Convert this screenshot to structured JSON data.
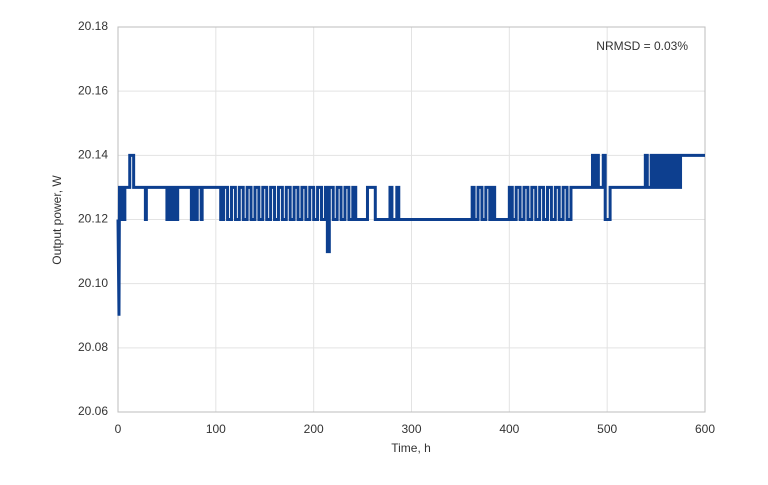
{
  "chart_data": {
    "type": "line",
    "x_label": "Time, h",
    "y_label": "Output power, W",
    "annotation": "NRMSD = 0.03%",
    "color": "#0d3f8f",
    "grid": true,
    "xlim": [
      0,
      600
    ],
    "xticks": [
      0,
      100,
      200,
      300,
      400,
      500,
      600
    ],
    "ylim": [
      20.06,
      20.18
    ],
    "yticks": [
      20.06,
      20.08,
      {
        "value": 20.1,
        "label": "20.10"
      },
      20.12,
      20.14,
      20.16,
      20.18
    ],
    "x": [
      0,
      1,
      1.5,
      3,
      3,
      5,
      5,
      6,
      6,
      7,
      7,
      12,
      12,
      16,
      16,
      28,
      28,
      29,
      29,
      50,
      50,
      52,
      52,
      55,
      55,
      57,
      57,
      60,
      60,
      61,
      61,
      75,
      75,
      77,
      77,
      80,
      80,
      81,
      81,
      85,
      85,
      86,
      86,
      105,
      105,
      108,
      108,
      112,
      112,
      116,
      116,
      120,
      120,
      124,
      124,
      128,
      128,
      132,
      132,
      136,
      136,
      140,
      140,
      144,
      144,
      148,
      148,
      152,
      152,
      156,
      156,
      160,
      160,
      164,
      164,
      168,
      168,
      172,
      172,
      176,
      176,
      180,
      180,
      184,
      184,
      188,
      188,
      192,
      192,
      196,
      196,
      200,
      200,
      204,
      204,
      208,
      208,
      212,
      212,
      214,
      214,
      216,
      216,
      220,
      220,
      224,
      224,
      228,
      228,
      232,
      232,
      236,
      236,
      240,
      240,
      243,
      243,
      255,
      255,
      263,
      263,
      278,
      278,
      280,
      280,
      285,
      285,
      287,
      287,
      362,
      362,
      364,
      364,
      368,
      368,
      372,
      372,
      376,
      376,
      380,
      380,
      383,
      383,
      385,
      385,
      400,
      400,
      403,
      403,
      407,
      407,
      411,
      411,
      415,
      415,
      419,
      419,
      423,
      423,
      427,
      427,
      431,
      431,
      435,
      435,
      439,
      439,
      443,
      443,
      447,
      447,
      451,
      451,
      455,
      455,
      459,
      459,
      463,
      463,
      485,
      485,
      487,
      487,
      489,
      489,
      491,
      491,
      496,
      496,
      498,
      498,
      503,
      503,
      539,
      539,
      541,
      541,
      545,
      545,
      548,
      548,
      551,
      551,
      554,
      554,
      557,
      557,
      560,
      560,
      563,
      563,
      566,
      566,
      569,
      569,
      572,
      572,
      575,
      575,
      600
    ],
    "values": [
      20.12,
      20.09,
      20.13,
      20.13,
      20.12,
      20.12,
      20.13,
      20.13,
      20.12,
      20.12,
      20.13,
      20.13,
      20.14,
      20.14,
      20.13,
      20.13,
      20.12,
      20.12,
      20.13,
      20.13,
      20.12,
      20.12,
      20.13,
      20.13,
      20.12,
      20.12,
      20.13,
      20.13,
      20.12,
      20.12,
      20.13,
      20.13,
      20.12,
      20.12,
      20.13,
      20.13,
      20.12,
      20.12,
      20.13,
      20.13,
      20.12,
      20.12,
      20.13,
      20.13,
      20.12,
      20.12,
      20.13,
      20.13,
      20.12,
      20.12,
      20.13,
      20.13,
      20.12,
      20.12,
      20.13,
      20.13,
      20.12,
      20.12,
      20.13,
      20.13,
      20.12,
      20.12,
      20.13,
      20.13,
      20.12,
      20.12,
      20.13,
      20.13,
      20.12,
      20.12,
      20.13,
      20.13,
      20.12,
      20.12,
      20.13,
      20.13,
      20.12,
      20.12,
      20.13,
      20.13,
      20.12,
      20.12,
      20.13,
      20.13,
      20.12,
      20.12,
      20.13,
      20.13,
      20.12,
      20.12,
      20.13,
      20.13,
      20.12,
      20.12,
      20.13,
      20.13,
      20.12,
      20.12,
      20.13,
      20.13,
      20.11,
      20.11,
      20.13,
      20.13,
      20.12,
      20.12,
      20.13,
      20.13,
      20.12,
      20.12,
      20.13,
      20.13,
      20.12,
      20.12,
      20.13,
      20.13,
      20.12,
      20.12,
      20.13,
      20.13,
      20.12,
      20.12,
      20.13,
      20.13,
      20.12,
      20.12,
      20.13,
      20.13,
      20.12,
      20.12,
      20.13,
      20.13,
      20.12,
      20.12,
      20.13,
      20.13,
      20.12,
      20.12,
      20.13,
      20.13,
      20.12,
      20.12,
      20.13,
      20.13,
      20.12,
      20.12,
      20.13,
      20.13,
      20.12,
      20.12,
      20.13,
      20.13,
      20.12,
      20.12,
      20.13,
      20.13,
      20.12,
      20.12,
      20.13,
      20.13,
      20.12,
      20.12,
      20.13,
      20.13,
      20.12,
      20.12,
      20.13,
      20.13,
      20.12,
      20.12,
      20.13,
      20.13,
      20.12,
      20.12,
      20.13,
      20.13,
      20.12,
      20.12,
      20.13,
      20.13,
      20.14,
      20.14,
      20.13,
      20.13,
      20.14,
      20.14,
      20.13,
      20.13,
      20.14,
      20.14,
      20.12,
      20.12,
      20.13,
      20.13,
      20.14,
      20.14,
      20.13,
      20.13,
      20.14,
      20.14,
      20.13,
      20.13,
      20.14,
      20.14,
      20.13,
      20.13,
      20.14,
      20.14,
      20.13,
      20.13,
      20.14,
      20.14,
      20.13,
      20.13,
      20.14,
      20.14,
      20.13,
      20.13,
      20.14,
      20.14
    ]
  }
}
